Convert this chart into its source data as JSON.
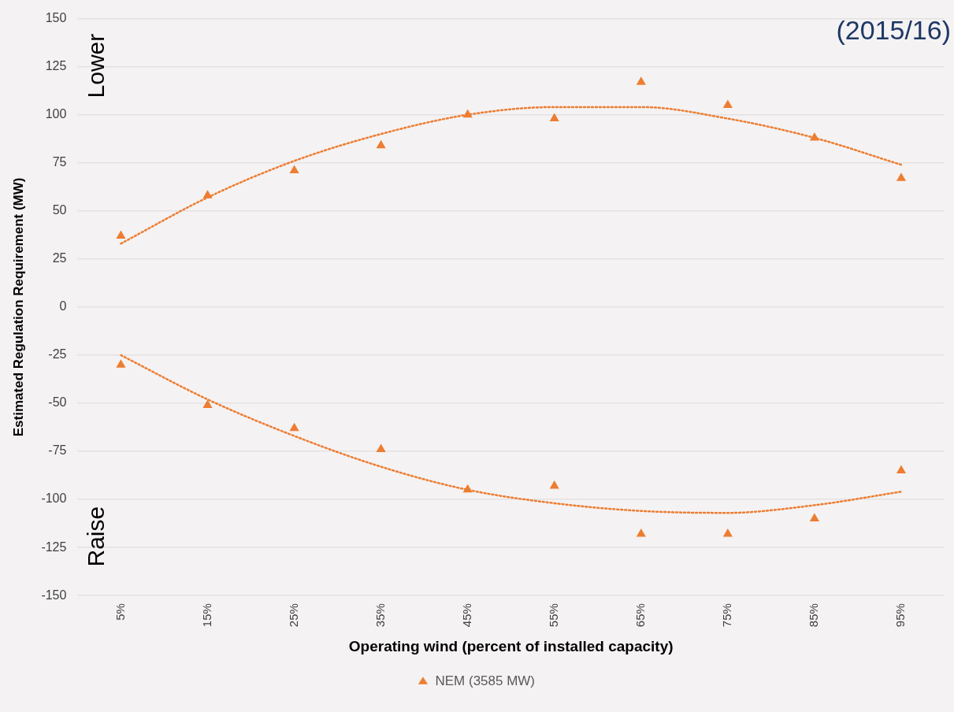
{
  "chart_data": {
    "type": "scatter",
    "xlabel": "Operating wind (percent of installed capacity)",
    "ylabel": "Estimated Regulation Requirement (MW)",
    "categories": [
      "5%",
      "15%",
      "25%",
      "35%",
      "45%",
      "55%",
      "65%",
      "75%",
      "85%",
      "95%"
    ],
    "ylim": [
      -150,
      150
    ],
    "yticks": [
      -150,
      -125,
      -100,
      -75,
      -50,
      -25,
      0,
      25,
      50,
      75,
      100,
      125,
      150
    ],
    "grid": "y",
    "legend": "bottom",
    "annotations": [
      "(2015/16)",
      "Lower",
      "Raise"
    ],
    "series": [
      {
        "name": "NEM (3585 MW)",
        "marker": "triangle",
        "color": "#ed7d31",
        "x": [
          "5%",
          "15%",
          "25%",
          "35%",
          "45%",
          "55%",
          "65%",
          "75%",
          "85%",
          "95%",
          "5%",
          "15%",
          "25%",
          "35%",
          "45%",
          "55%",
          "65%",
          "75%",
          "85%",
          "95%"
        ],
        "values": [
          37,
          58,
          71,
          84,
          100,
          98,
          117,
          105,
          88,
          67,
          -30,
          -51,
          -63,
          -74,
          -95,
          -93,
          -118,
          -118,
          -110,
          -85
        ]
      },
      {
        "type": "line",
        "marker": "none",
        "line_style": "dotted",
        "color": "#ed7d31",
        "values": [
          33,
          57,
          76,
          90,
          100,
          104,
          104,
          98,
          88,
          74
        ]
      },
      {
        "type": "line",
        "marker": "none",
        "line_style": "dotted",
        "color": "#ed7d31",
        "values": [
          -25,
          -48,
          -67,
          -83,
          -95,
          -102,
          -106,
          -107,
          -103,
          -96
        ]
      }
    ]
  }
}
